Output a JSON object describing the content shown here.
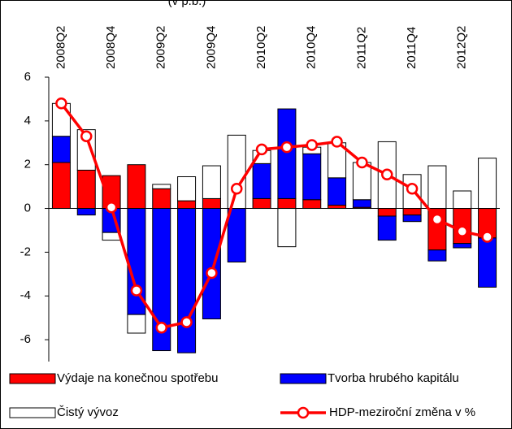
{
  "chart_data": {
    "type": "stacked-bar-line",
    "title": "(v p.b.)",
    "categories": [
      "2008Q2",
      null,
      "2008Q4",
      null,
      "2009Q2",
      null,
      "2009Q4",
      null,
      "2010Q2",
      null,
      "2010Q4",
      null,
      "2011Q2",
      null,
      "2011Q4",
      null,
      "2012Q2",
      null
    ],
    "series": [
      {
        "name": "Výdaje na konečnou spotřebu",
        "type": "bar",
        "color": "#ff0000",
        "values": [
          2.1,
          1.75,
          1.5,
          2.0,
          0.9,
          0.35,
          0.45,
          0,
          0.45,
          0.45,
          0.4,
          0.15,
          0.05,
          -0.35,
          -0.3,
          -1.9,
          -1.6,
          -1.35
        ]
      },
      {
        "name": "Tvorba hrubého kapitálu",
        "type": "bar",
        "color": "#0000ff",
        "values": [
          1.2,
          -0.3,
          -1.1,
          -4.85,
          -6.5,
          -6.6,
          -5.05,
          -2.45,
          1.6,
          4.1,
          2.1,
          1.25,
          0.35,
          -1.1,
          -0.3,
          -0.5,
          -0.2,
          -2.25
        ]
      },
      {
        "name": "Čistý vývoz",
        "type": "bar",
        "color": "#ffffff",
        "values": [
          1.5,
          1.85,
          -0.35,
          -0.85,
          0.2,
          1.1,
          1.5,
          3.35,
          0.6,
          -1.75,
          0.3,
          1.6,
          1.7,
          3.05,
          1.55,
          1.95,
          0.8,
          2.3
        ]
      },
      {
        "name": "HDP-meziroční změna v %",
        "type": "line",
        "color": "#ff0000",
        "values": [
          4.8,
          3.3,
          0.05,
          -3.75,
          -5.45,
          -5.2,
          -2.95,
          0.9,
          2.7,
          2.8,
          2.9,
          3.05,
          2.1,
          1.55,
          0.9,
          -0.5,
          -1.05,
          -1.3
        ]
      }
    ],
    "ylim": [
      -7,
      6
    ],
    "yticks": [
      -6,
      -4,
      -2,
      0,
      2,
      4,
      6
    ]
  }
}
